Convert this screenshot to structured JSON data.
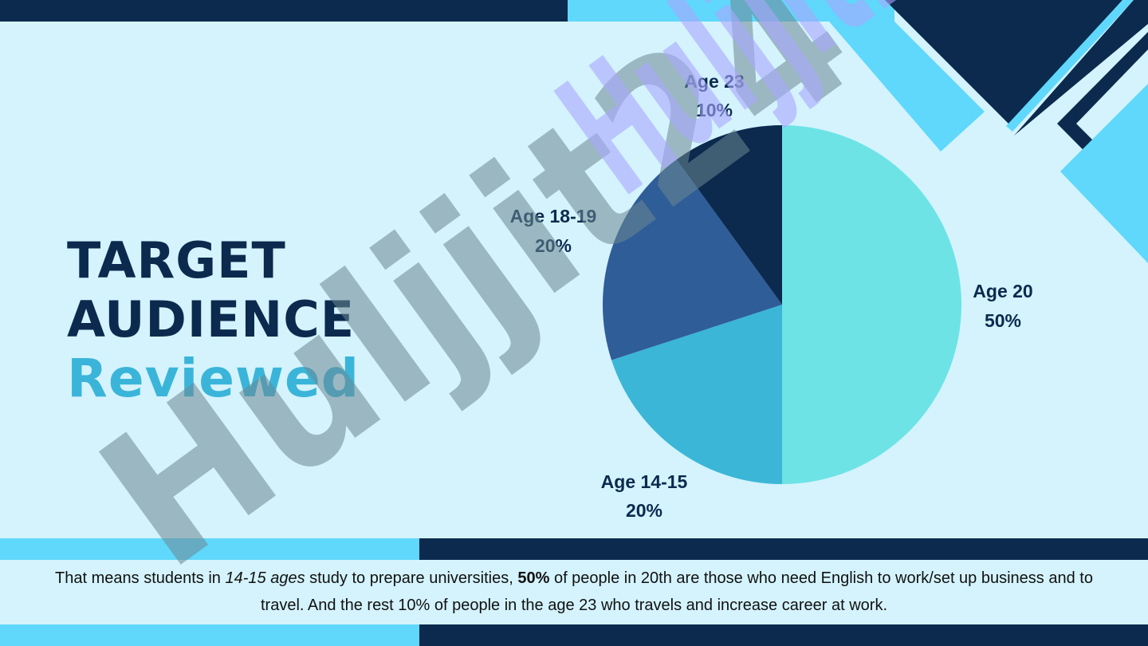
{
  "slide": {
    "title_line1": "TARGET",
    "title_line2": "AUDIENCE",
    "title_line3": "Reviewed"
  },
  "caption": {
    "part1": "That means students in ",
    "part2_italic": "14-15 ages",
    "part3": " study to prepare universities, ",
    "part4_bold": "50%",
    "part5": " of people in 20th are those who need English to work/set up business and to travel. And the rest 10% of people in the age 23 who travels and increase career at work."
  },
  "watermark": {
    "text": "Huljjit24"
  },
  "colors": {
    "background": "#d4f3fd",
    "navy": "#0b2a4e",
    "sky": "#5fd8fb",
    "accent": "#3ab5d9"
  },
  "chart_data": {
    "type": "pie",
    "categories": [
      "Age 20",
      "Age 14-15",
      "Age 18-19",
      "Age 23"
    ],
    "values": [
      50,
      20,
      20,
      10
    ],
    "value_labels": [
      "50%",
      "20%",
      "20%",
      "10%"
    ],
    "colors": [
      "#6de3e6",
      "#3bb6d6",
      "#2f5d98",
      "#0b2a4e"
    ],
    "start": "12 o'clock",
    "direction": "clockwise"
  }
}
